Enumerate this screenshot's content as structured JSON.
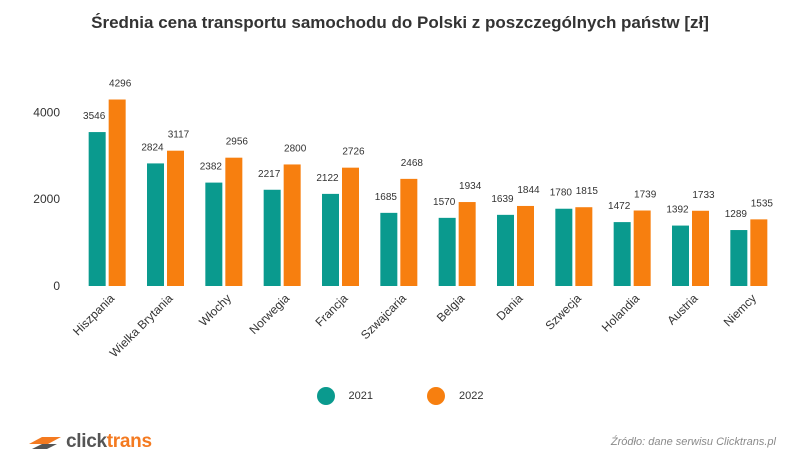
{
  "title": "Średnia cena transportu samochodu do Polski z poszczególnych państw [zł]",
  "chart_data": {
    "type": "bar",
    "categories": [
      "Hiszpania",
      "Wielka Brytania",
      "Włochy",
      "Norwegia",
      "Francja",
      "Szwajcaria",
      "Belgia",
      "Dania",
      "Szwecja",
      "Holandia",
      "Austria",
      "Niemcy"
    ],
    "series": [
      {
        "name": "2021",
        "color": "#0a9a8e",
        "values": [
          3546,
          2824,
          2382,
          2217,
          2122,
          1685,
          1570,
          1639,
          1780,
          1472,
          1392,
          1289
        ]
      },
      {
        "name": "2022",
        "color": "#f77f0f",
        "values": [
          4296,
          3117,
          2956,
          2800,
          2726,
          2468,
          1934,
          1844,
          1815,
          1739,
          1733,
          1535
        ]
      }
    ],
    "yticks": [
      0,
      2000,
      4000
    ],
    "ylim": [
      0,
      4400
    ],
    "xlabel": "",
    "ylabel": "",
    "grid": false,
    "legend": "bottom-center"
  },
  "legend": [
    {
      "label": "2021",
      "color": "#0a9a8e"
    },
    {
      "label": "2022",
      "color": "#f77f0f"
    }
  ],
  "logo": {
    "part1": "click",
    "part2": "trans"
  },
  "source": "Źródło: dane serwisu Clicktrans.pl"
}
